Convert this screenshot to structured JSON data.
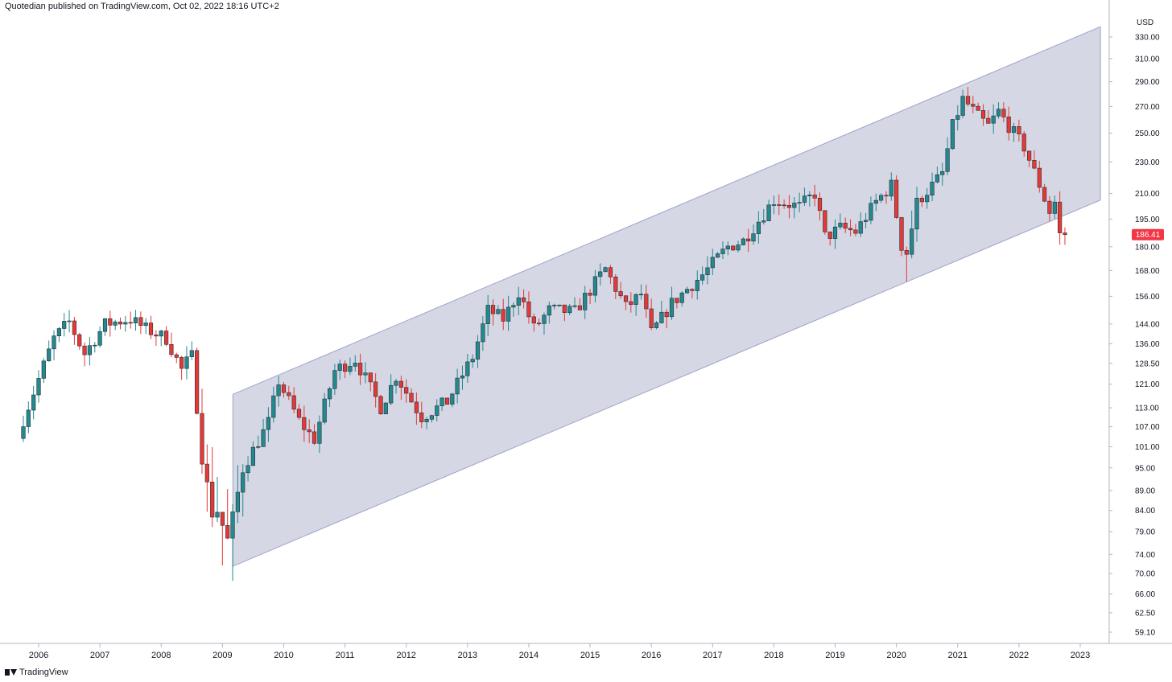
{
  "header": {
    "text": "Quotedian published on TradingView.com, Oct 02, 2022 18:16 UTC+2"
  },
  "footer": {
    "brand": "TradingView"
  },
  "colors": {
    "up": "#22898f",
    "down": "#e53935",
    "channel_fill": "#d3d5e3",
    "channel_line": "#9fa3c7",
    "last_price_bg": "#f23645"
  },
  "chart_data": {
    "type": "candlestick",
    "interval": "monthly",
    "currency": "USD",
    "scale": "log",
    "grid": false,
    "y_ticks": [
      "330.00",
      "310.00",
      "290.00",
      "270.00",
      "250.00",
      "230.00",
      "210.00",
      "195.00",
      "180.00",
      "168.00",
      "156.00",
      "144.00",
      "136.00",
      "128.50",
      "121.00",
      "113.00",
      "107.00",
      "101.00",
      "95.00",
      "89.00",
      "84.00",
      "79.00",
      "74.00",
      "70.00",
      "66.00",
      "62.50",
      "59.10"
    ],
    "x_ticks": [
      "2006",
      "2007",
      "2008",
      "2009",
      "2010",
      "2011",
      "2012",
      "2013",
      "2014",
      "2015",
      "2016",
      "2017",
      "2018",
      "2019",
      "2020",
      "2021",
      "2022",
      "2023"
    ],
    "last_price": {
      "value": 186.41,
      "label": "186.41"
    },
    "channel": {
      "lower": [
        [
          2009.17,
          71.5
        ],
        [
          2023.33,
          206.0
        ]
      ],
      "upper": [
        [
          2009.17,
          117.5
        ],
        [
          2023.33,
          340.0
        ]
      ]
    },
    "anchors": [
      [
        2005.75,
        105
      ],
      [
        2006.33,
        138
      ],
      [
        2006.58,
        145
      ],
      [
        2006.83,
        132
      ],
      [
        2007.17,
        144
      ],
      [
        2007.58,
        146
      ],
      [
        2007.83,
        142
      ],
      [
        2008.17,
        138
      ],
      [
        2008.42,
        126
      ],
      [
        2008.58,
        132
      ],
      [
        2008.75,
        98
      ],
      [
        2008.92,
        83
      ],
      [
        2009.0,
        84
      ],
      [
        2009.17,
        77
      ],
      [
        2009.42,
        95
      ],
      [
        2009.83,
        108
      ],
      [
        2010.0,
        122
      ],
      [
        2010.33,
        109
      ],
      [
        2010.58,
        103
      ],
      [
        2010.92,
        126
      ],
      [
        2011.25,
        130
      ],
      [
        2011.67,
        113
      ],
      [
        2011.92,
        124
      ],
      [
        2012.33,
        110
      ],
      [
        2012.75,
        115
      ],
      [
        2013.17,
        131
      ],
      [
        2013.42,
        150
      ],
      [
        2013.67,
        146
      ],
      [
        2013.92,
        158
      ],
      [
        2014.17,
        142
      ],
      [
        2014.42,
        150
      ],
      [
        2014.83,
        149
      ],
      [
        2015.33,
        169
      ],
      [
        2015.67,
        151
      ],
      [
        2015.92,
        157
      ],
      [
        2016.08,
        140
      ],
      [
        2016.42,
        153
      ],
      [
        2016.92,
        166
      ],
      [
        2017.33,
        180
      ],
      [
        2017.58,
        183
      ],
      [
        2017.92,
        198
      ],
      [
        2018.08,
        206
      ],
      [
        2018.5,
        202
      ],
      [
        2018.75,
        210
      ],
      [
        2018.92,
        185
      ],
      [
        2019.17,
        190
      ],
      [
        2019.42,
        188
      ],
      [
        2019.75,
        205
      ],
      [
        2020.0,
        215
      ],
      [
        2020.17,
        180
      ],
      [
        2020.25,
        177
      ],
      [
        2020.42,
        205
      ],
      [
        2020.67,
        215
      ],
      [
        2020.83,
        222
      ],
      [
        2021.0,
        255
      ],
      [
        2021.17,
        276
      ],
      [
        2021.42,
        262
      ],
      [
        2021.58,
        255
      ],
      [
        2021.75,
        266
      ],
      [
        2022.0,
        250
      ],
      [
        2022.17,
        240
      ],
      [
        2022.42,
        215
      ],
      [
        2022.58,
        199
      ],
      [
        2022.67,
        205
      ],
      [
        2022.75,
        186.41
      ]
    ]
  }
}
